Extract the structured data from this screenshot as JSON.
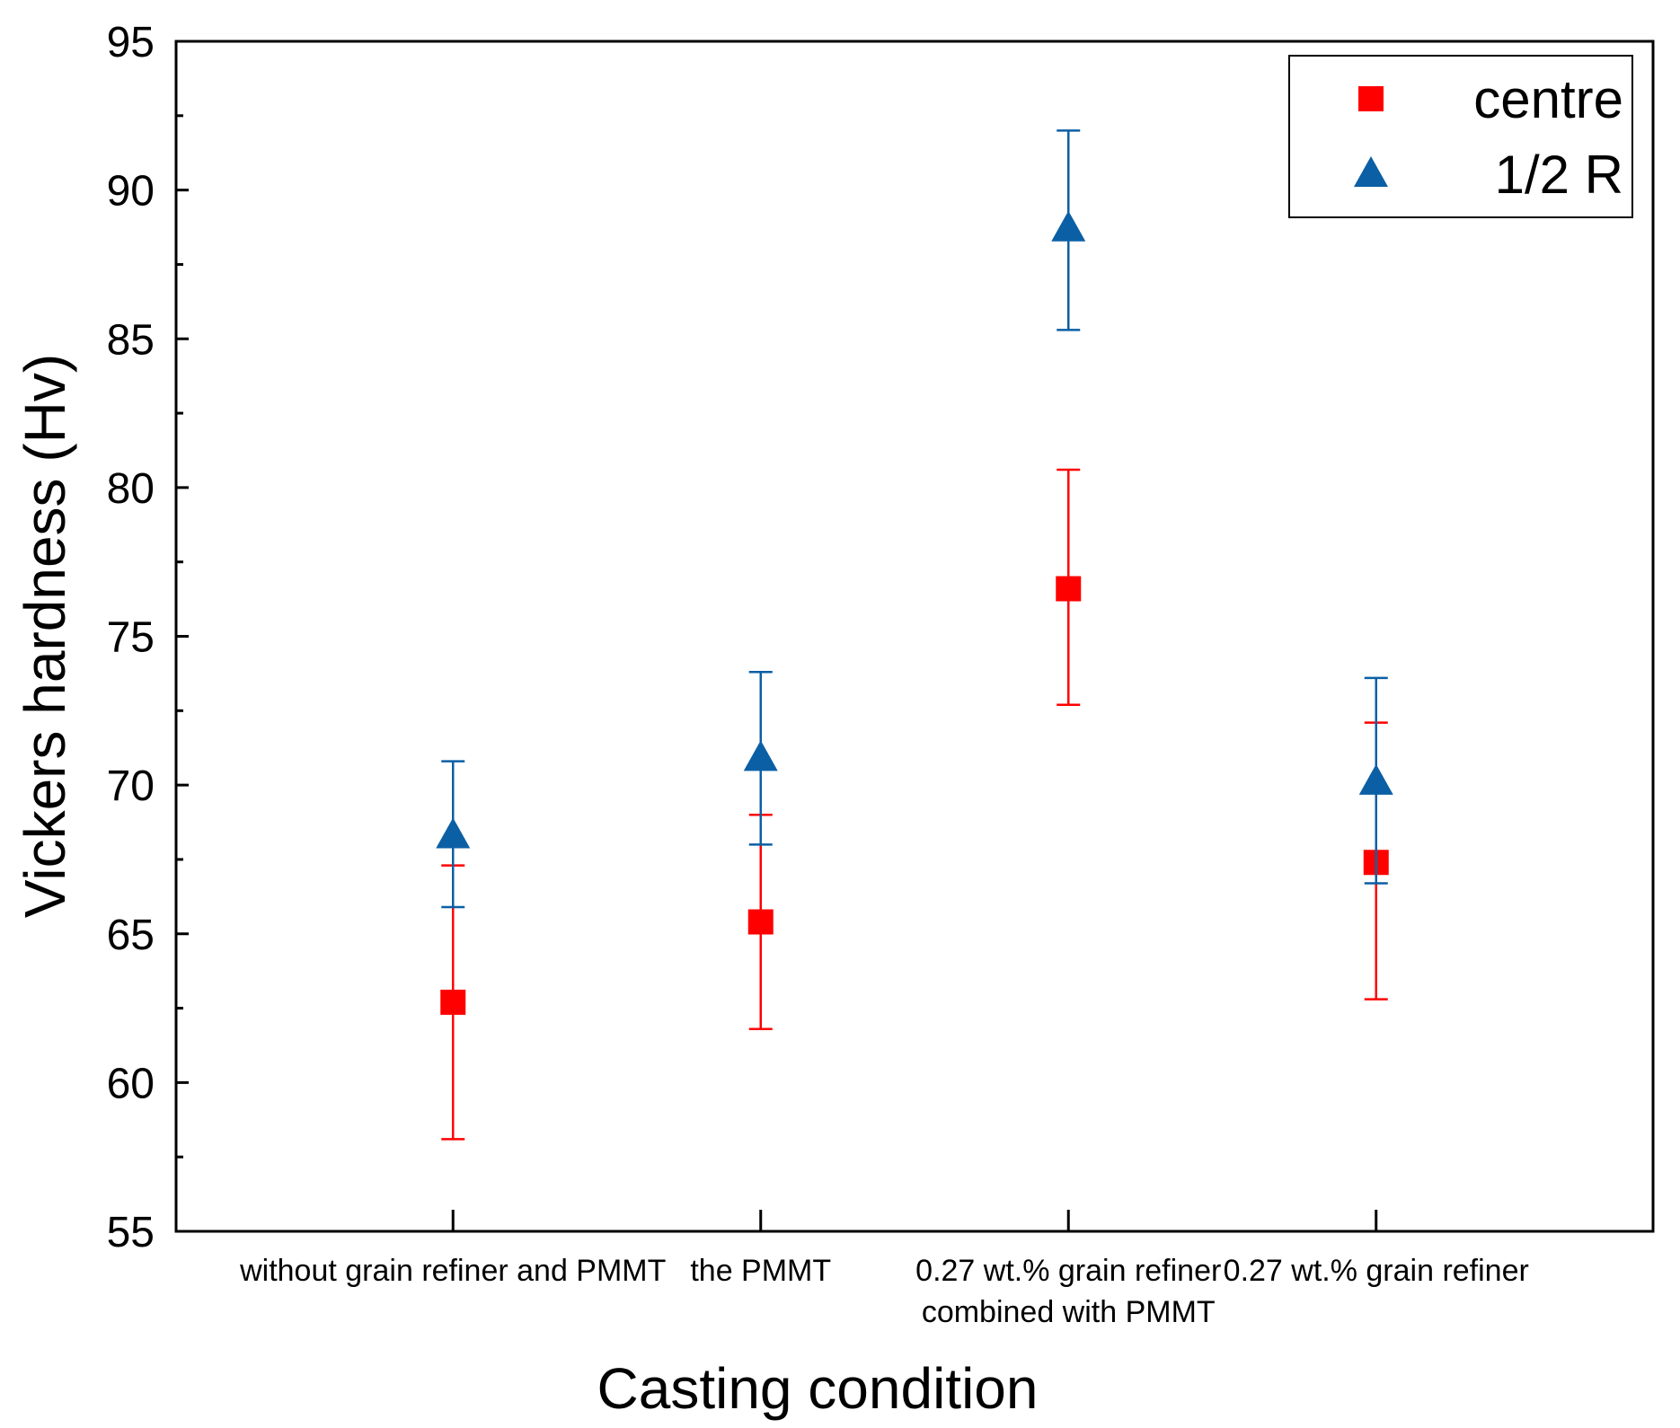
{
  "chart_data": {
    "type": "scatter",
    "title": "",
    "xlabel": "Casting condition",
    "ylabel": "Vickers hardness (Hv)",
    "ylim": [
      55,
      95
    ],
    "yticks": [
      55,
      60,
      65,
      70,
      75,
      80,
      85,
      90,
      95
    ],
    "grid": false,
    "legend_position": "top-right",
    "categories": [
      [
        "without grain refiner and PMMT"
      ],
      [
        "the PMMT"
      ],
      [
        "0.27 wt.% grain refiner",
        "combined with PMMT"
      ],
      [
        "0.27 wt.% grain refiner"
      ]
    ],
    "series": [
      {
        "name": "centre",
        "marker": "square",
        "color": "#ff0000",
        "values": [
          62.7,
          65.4,
          76.6,
          67.4
        ],
        "error_low": [
          58.1,
          61.8,
          72.7,
          62.8
        ],
        "error_high": [
          67.3,
          69.0,
          80.6,
          72.1
        ]
      },
      {
        "name": "1/2 R",
        "marker": "triangle",
        "color": "#0b5fa5",
        "values": [
          68.3,
          70.9,
          88.7,
          70.1
        ],
        "error_low": [
          65.9,
          68.0,
          85.3,
          66.7
        ],
        "error_high": [
          70.8,
          73.8,
          92.0,
          73.6
        ]
      }
    ]
  }
}
